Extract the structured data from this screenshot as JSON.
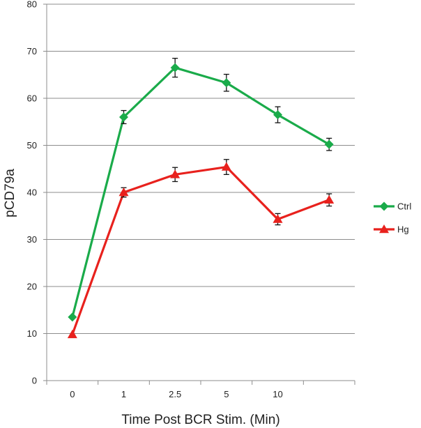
{
  "chart_data": {
    "type": "line",
    "title": "",
    "xlabel": "Time Post BCR Stim. (Min)",
    "ylabel": "pCD79a",
    "ylim": [
      0,
      80
    ],
    "yticks": [
      "0",
      "10",
      "20",
      "30",
      "40",
      "50",
      "60",
      "70",
      "80"
    ],
    "categories": [
      "0",
      "1",
      "2.5",
      "5",
      "10",
      ""
    ],
    "grid": "horizontal",
    "legend_position": "right",
    "series": [
      {
        "name": "Ctrl",
        "color": "#1aab4a",
        "marker": "diamond",
        "values": [
          13.5,
          56,
          66.5,
          63.3,
          56.5,
          50.2
        ],
        "errors": [
          0,
          1.4,
          2.0,
          1.8,
          1.7,
          1.3
        ]
      },
      {
        "name": "Hg",
        "color": "#e8211d",
        "marker": "triangle",
        "values": [
          9.8,
          40,
          43.8,
          45.4,
          34.3,
          38.4
        ],
        "errors": [
          0,
          1.0,
          1.5,
          1.6,
          1.2,
          1.3
        ]
      }
    ]
  }
}
